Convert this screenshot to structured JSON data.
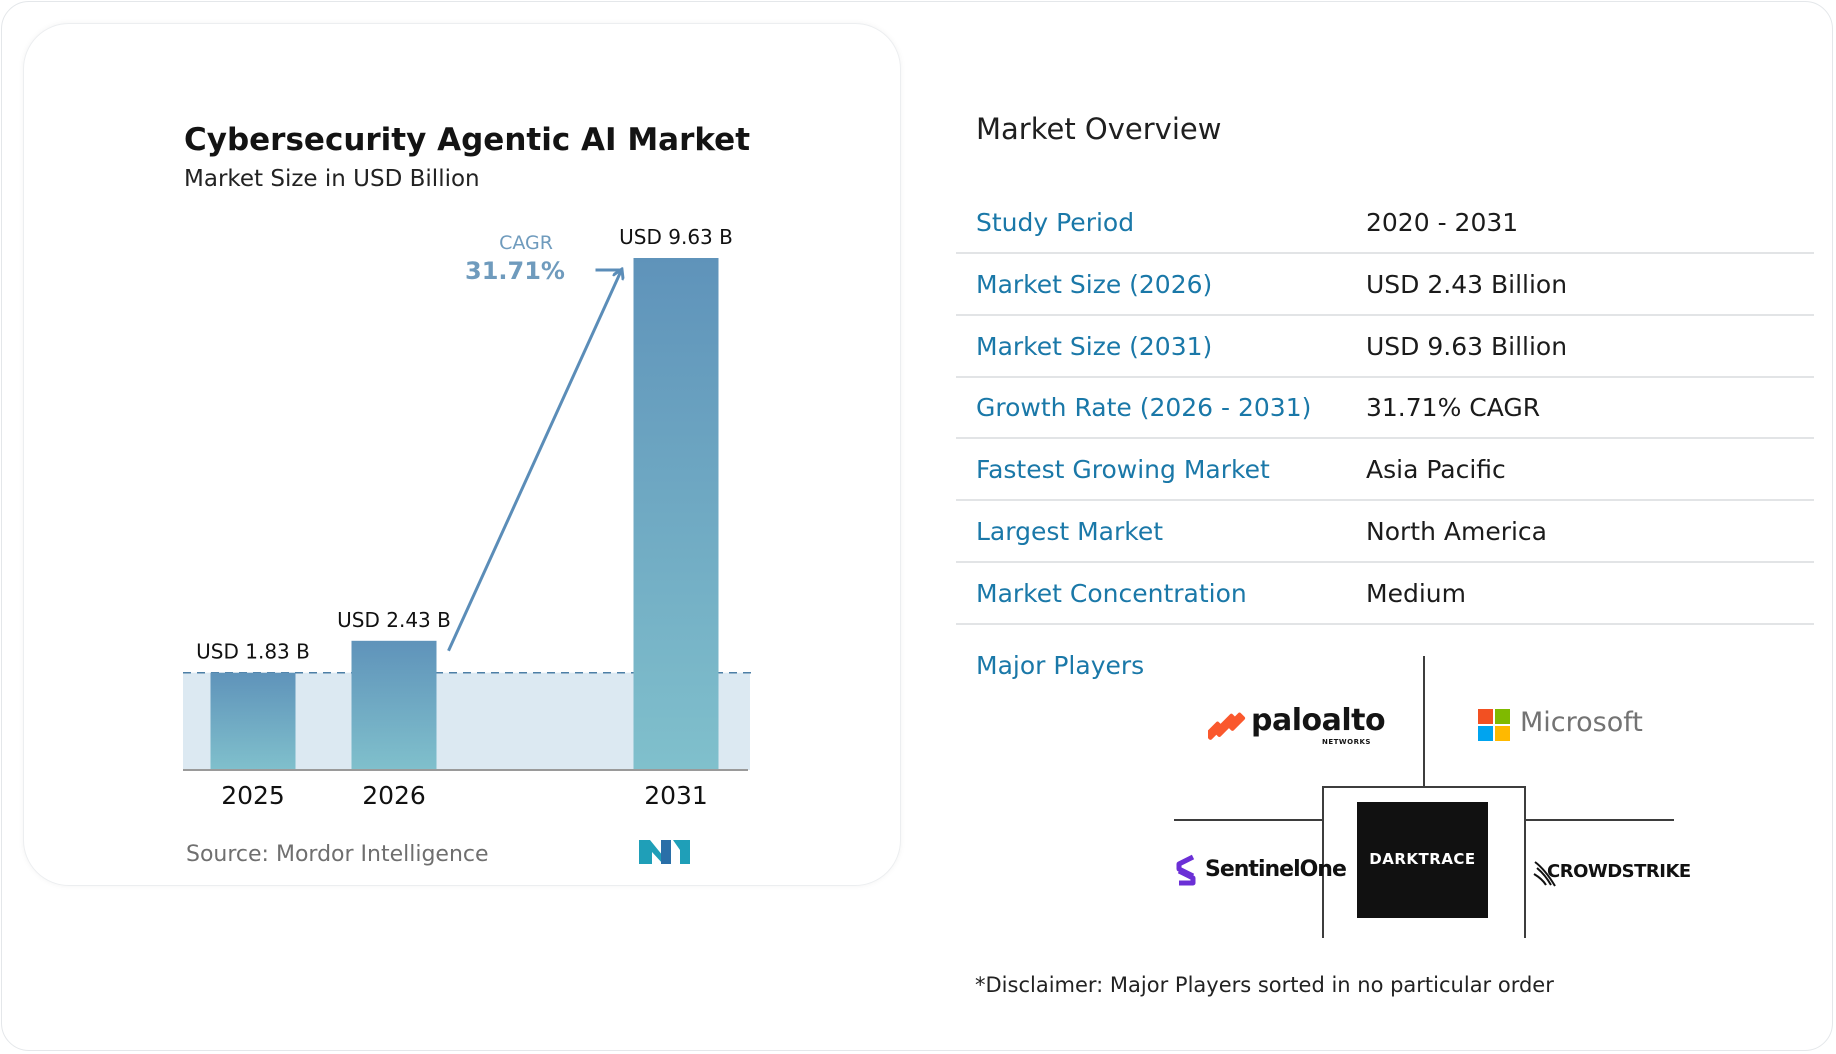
{
  "chart_data": {
    "type": "bar",
    "title": "Cybersecurity Agentic AI Market",
    "subtitle": "Market Size in USD Billion",
    "categories": [
      "2025",
      "2026",
      "2031"
    ],
    "values": [
      1.83,
      2.43,
      9.63
    ],
    "data_labels": [
      "USD 1.83 B",
      "USD 2.43 B",
      "USD 9.63 B"
    ],
    "ylim": [
      0,
      9.63
    ],
    "cagr_label": "CAGR",
    "cagr_value": "31.71%",
    "source": "Source: Mordor Intelligence",
    "grid": false,
    "colors": {
      "bar_top": "#5f93ba",
      "bar_bottom": "#80c0cc",
      "band": "#dce9f2",
      "arrow": "#5b8db8",
      "cagr_text": "#6f9bbd"
    }
  },
  "overview": {
    "title": "Market Overview",
    "rows": [
      {
        "label": "Study Period",
        "value": "2020 - 2031"
      },
      {
        "label": "Market Size (2026)",
        "value": "USD 2.43 Billion"
      },
      {
        "label": "Market Size (2031)",
        "value": "USD 9.63 Billion"
      },
      {
        "label": "Growth Rate (2026 - 2031)",
        "value": "31.71% CAGR"
      },
      {
        "label": "Fastest Growing Market",
        "value": "Asia Pacific"
      },
      {
        "label": "Largest Market",
        "value": "North America"
      },
      {
        "label": "Market Concentration",
        "value": "Medium"
      }
    ],
    "players_label": "Major Players",
    "players": {
      "paloalto": {
        "name": "paloalto",
        "sub": "NETWORKS"
      },
      "microsoft": {
        "name": "Microsoft"
      },
      "darktrace": {
        "name": "DARKTRACE"
      },
      "sentinelone": {
        "name": "SentinelOne"
      },
      "crowdstrike": {
        "name": "CROWDSTRIKE"
      }
    },
    "disclaimer": "*Disclaimer: Major Players sorted in no particular order"
  },
  "colors": {
    "accent": "#1a78a8",
    "palo_orange": "#fa582d",
    "sentinel_purple": "#6b2fd6"
  }
}
